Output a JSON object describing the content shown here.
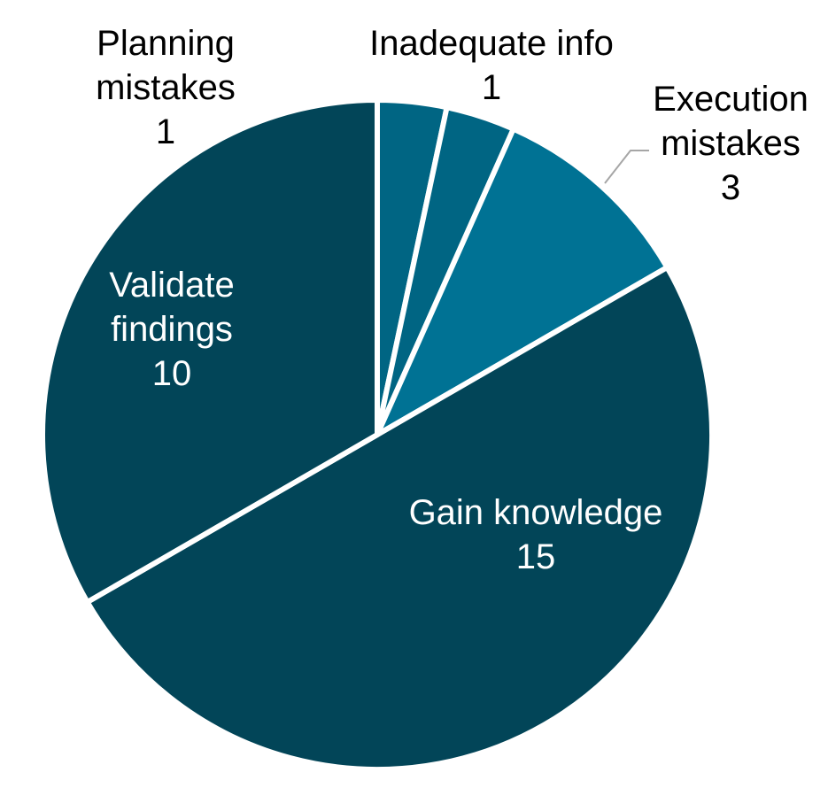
{
  "chart_data": {
    "type": "pie",
    "title": "",
    "start_angle_deg": 0,
    "direction": "clockwise",
    "slices": [
      {
        "label": "Planning mistakes",
        "lines": [
          "Planning",
          "mistakes"
        ],
        "value": 1,
        "color": "#006583",
        "label_color": "#000000",
        "label_side": "outside"
      },
      {
        "label": "Inadequate info",
        "lines": [
          "Inadequate info"
        ],
        "value": 1,
        "color": "#006583",
        "label_color": "#000000",
        "label_side": "outside"
      },
      {
        "label": "Execution mistakes",
        "lines": [
          "Execution",
          "mistakes"
        ],
        "value": 3,
        "color": "#007294",
        "label_color": "#000000",
        "label_side": "outside",
        "leader_line": true
      },
      {
        "label": "Gain knowledge",
        "lines": [
          "Gain knowledge"
        ],
        "value": 15,
        "color": "#024558",
        "label_color": "#ffffff",
        "label_side": "inside"
      },
      {
        "label": "Validate findings",
        "lines": [
          "Validate",
          "findings"
        ],
        "value": 10,
        "color": "#024558",
        "label_color": "#ffffff",
        "label_side": "inside"
      }
    ],
    "legend": "none",
    "separator_color": "#ffffff",
    "leader_line_color": "#a6a6a6"
  }
}
